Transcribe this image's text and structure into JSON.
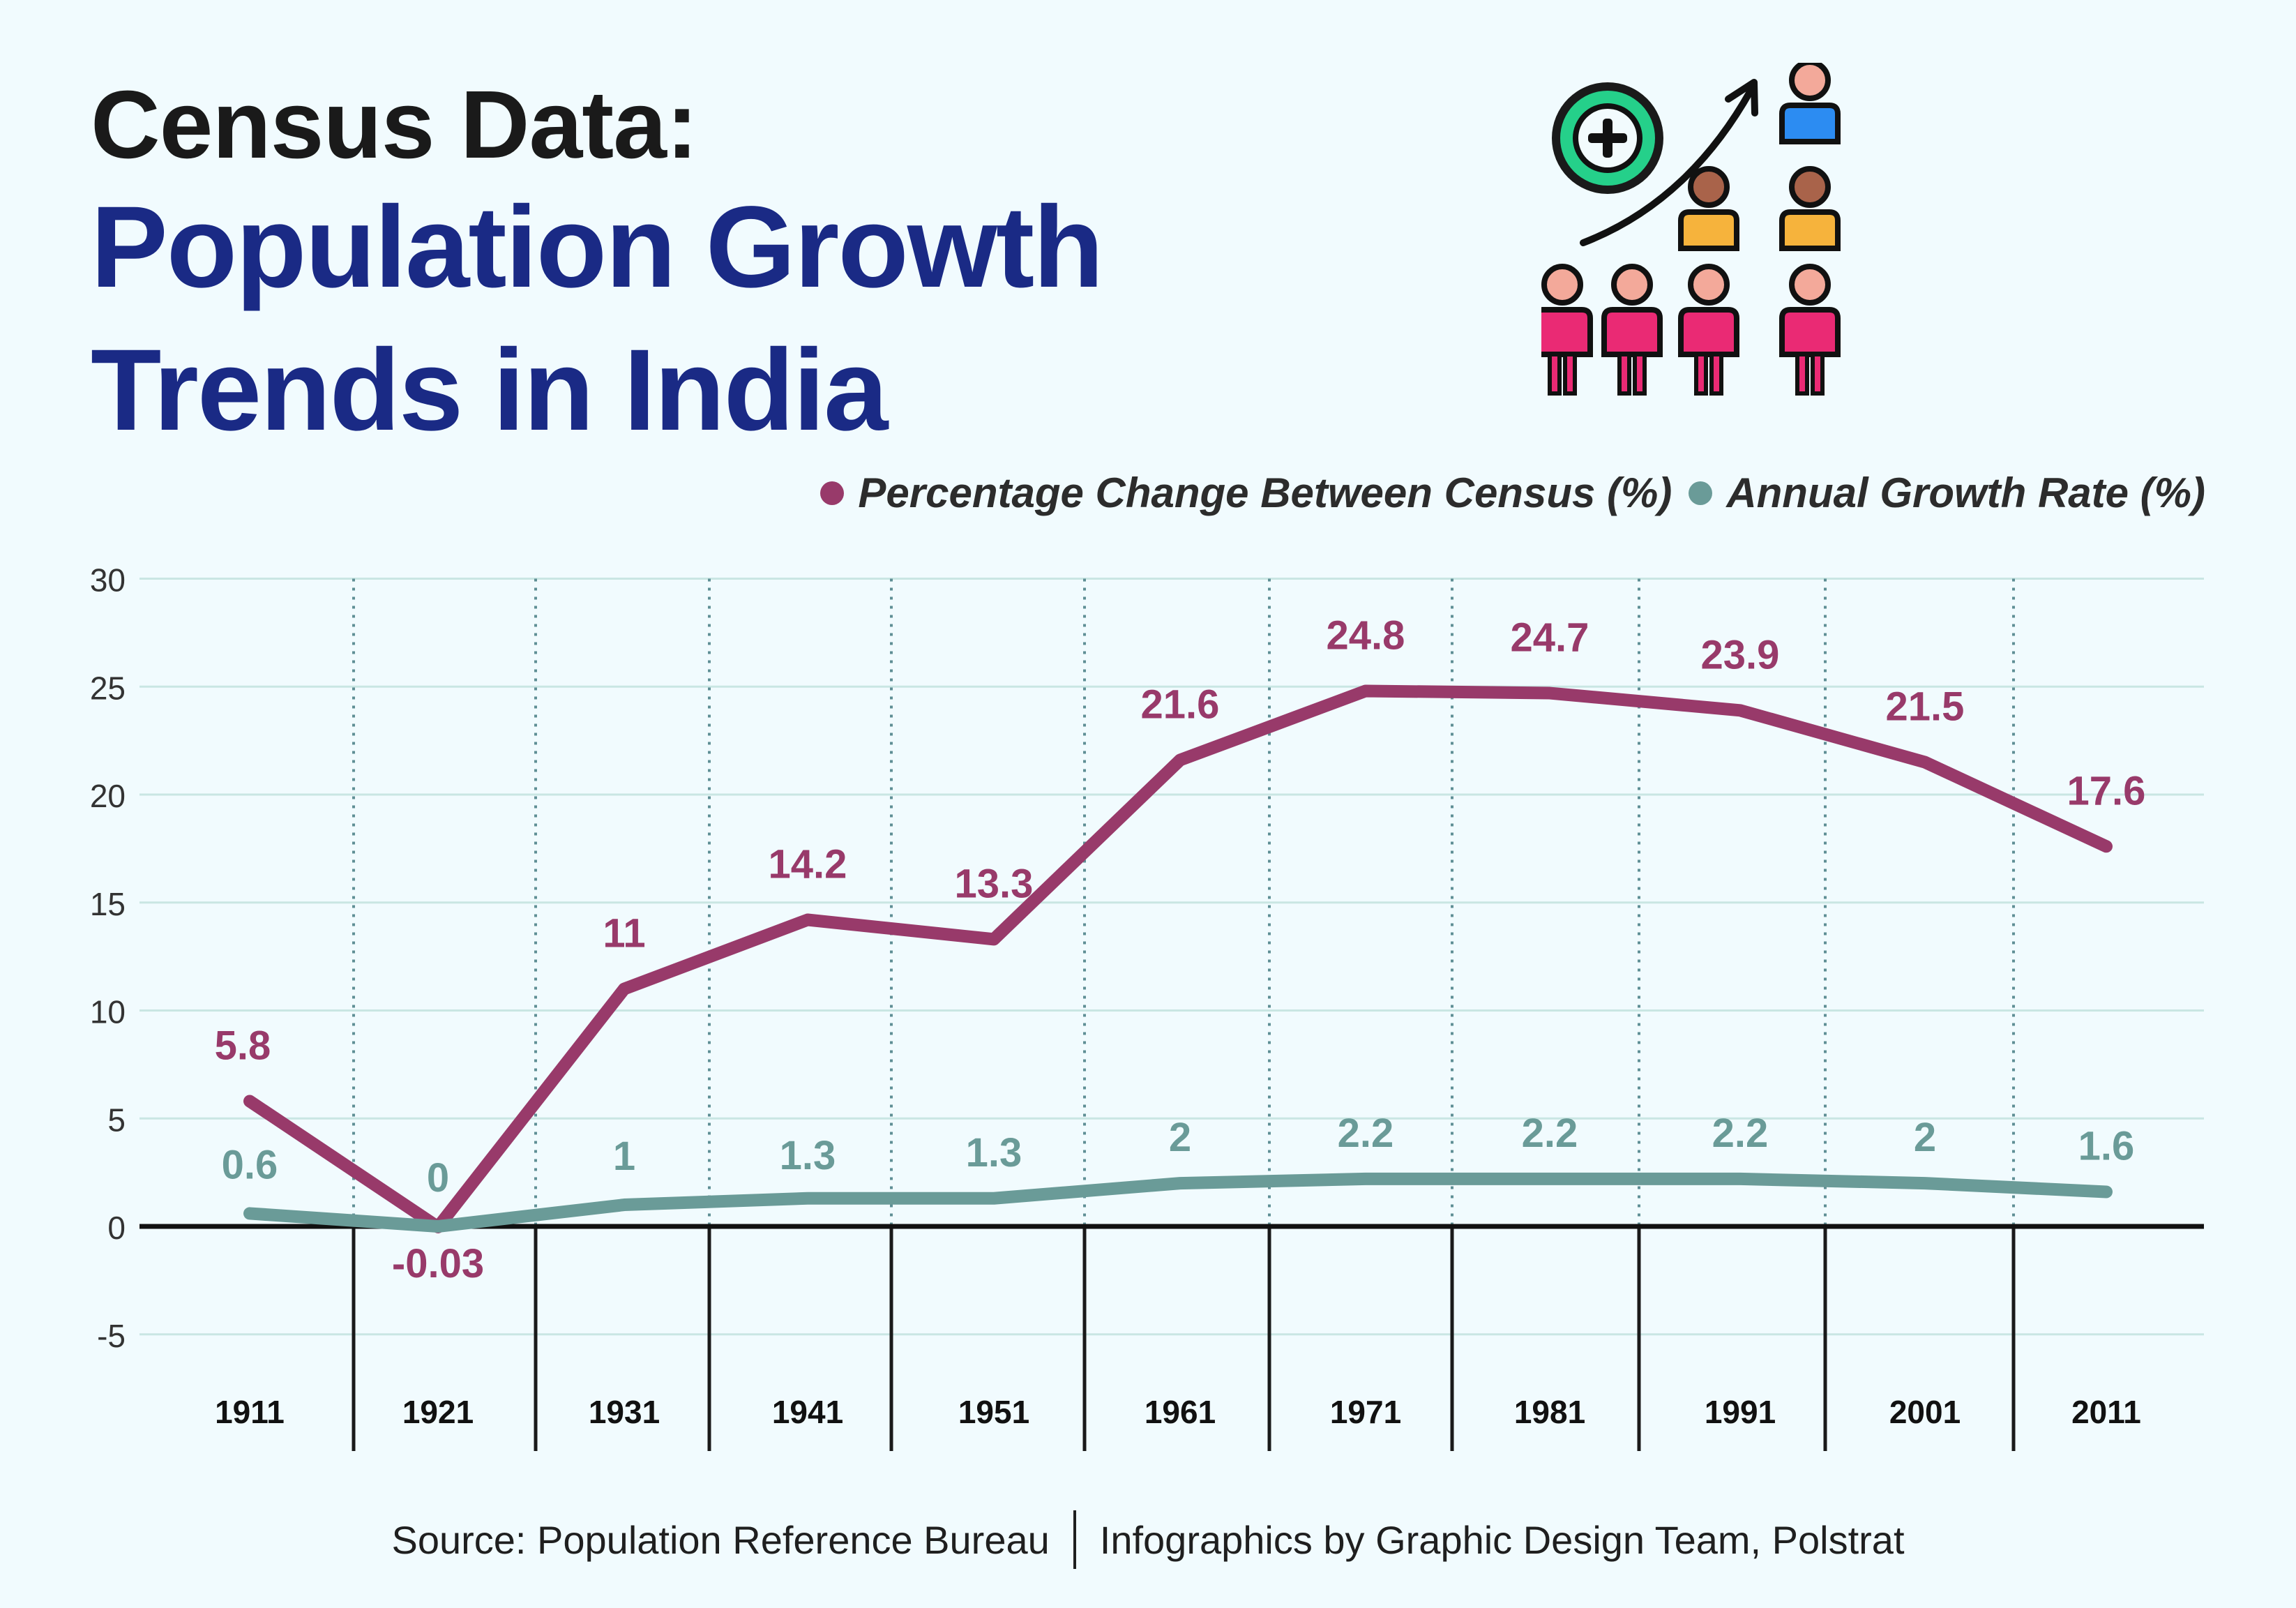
{
  "header": {
    "title_line1": "Census Data:",
    "title_line2": "Population Growth",
    "title_line3": "Trends in India"
  },
  "footer": {
    "source": "Source: Population Reference Bureau",
    "credit": "Infographics by Graphic Design Team, Polstrat"
  },
  "colors": {
    "background": "#f1fbfe",
    "series_percentage": "#983a6a",
    "series_annual": "#6a9b98",
    "title_blue": "#1a2a85"
  },
  "illustration": {
    "icon_names": [
      "plus-badge-icon",
      "growth-arrow-icon",
      "people-pyramid-icon"
    ]
  },
  "chart_data": {
    "type": "line",
    "categories": [
      "1911",
      "1921",
      "1931",
      "1941",
      "1951",
      "1961",
      "1971",
      "1981",
      "1991",
      "2001",
      "2011"
    ],
    "series": [
      {
        "name": "Percentage Change Between Census (%)",
        "values": [
          5.8,
          -0.03,
          11,
          14.2,
          13.3,
          21.6,
          24.8,
          24.7,
          23.9,
          21.5,
          17.6
        ],
        "labels": [
          "5.8",
          "-0.03",
          "11",
          "14.2",
          "13.3",
          "21.6",
          "24.8",
          "24.7",
          "23.9",
          "21.5",
          "17.6"
        ],
        "color": "#983a6a"
      },
      {
        "name": "Annual Growth Rate (%)",
        "values": [
          0.6,
          0,
          1,
          1.3,
          1.3,
          2,
          2.2,
          2.2,
          2.2,
          2,
          1.6
        ],
        "labels": [
          "0.6",
          "0",
          "1",
          "1.3",
          "1.3",
          "2",
          "2.2",
          "2.2",
          "2.2",
          "2",
          "1.6"
        ],
        "color": "#6a9b98"
      }
    ],
    "yticks": [
      "30",
      "25",
      "20",
      "15",
      "10",
      "5",
      "0",
      "-5"
    ],
    "ylim": [
      -5,
      30
    ],
    "grid": true,
    "legend_position": "top-right",
    "title": "",
    "xlabel": "",
    "ylabel": ""
  }
}
